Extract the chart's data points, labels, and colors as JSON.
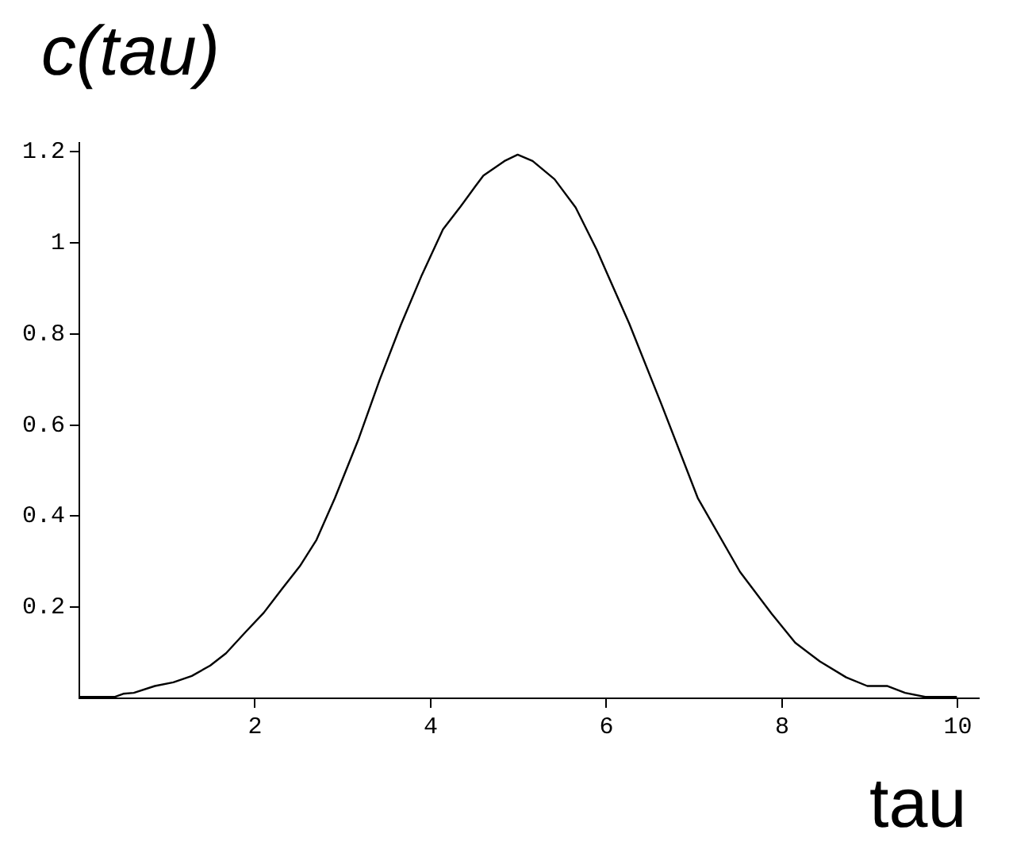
{
  "chart_data": {
    "type": "line",
    "ylabel": "c(tau)",
    "xlabel": "tau",
    "x": [
      0,
      0.4,
      0.5,
      0.62,
      0.86,
      1.07,
      1.28,
      1.49,
      1.67,
      1.89,
      2.1,
      2.31,
      2.51,
      2.7,
      2.91,
      3.18,
      3.42,
      3.66,
      3.9,
      4.14,
      4.34,
      4.51,
      4.6,
      4.84,
      4.99,
      5.16,
      5.41,
      5.65,
      5.89,
      6.26,
      6.62,
      7.04,
      7.52,
      7.88,
      8.15,
      8.43,
      8.73,
      8.97,
      9.2,
      9.4,
      9.63,
      9.99
    ],
    "series": [
      {
        "color": "#000000",
        "values": [
          0.003,
          0.003,
          0.01,
          0.012,
          0.027,
          0.035,
          0.049,
          0.072,
          0.099,
          0.145,
          0.188,
          0.241,
          0.29,
          0.348,
          0.44,
          0.57,
          0.7,
          0.82,
          0.93,
          1.03,
          1.08,
          1.125,
          1.148,
          1.18,
          1.194,
          1.18,
          1.14,
          1.078,
          0.985,
          0.823,
          0.649,
          0.44,
          0.278,
          0.186,
          0.122,
          0.081,
          0.046,
          0.027,
          0.027,
          0.012,
          0.003,
          0.003
        ]
      }
    ],
    "xlim": [
      0,
      10.24
    ],
    "ylim": [
      0,
      1.22
    ],
    "xticks": [
      2,
      4,
      6,
      8,
      10
    ],
    "yticks": [
      0.2,
      0.4,
      0.6,
      0.8,
      {
        "value": 1,
        "label": "1"
      },
      1.2
    ],
    "grid": false,
    "legend": false,
    "marker": "none",
    "line_style": "solid"
  }
}
